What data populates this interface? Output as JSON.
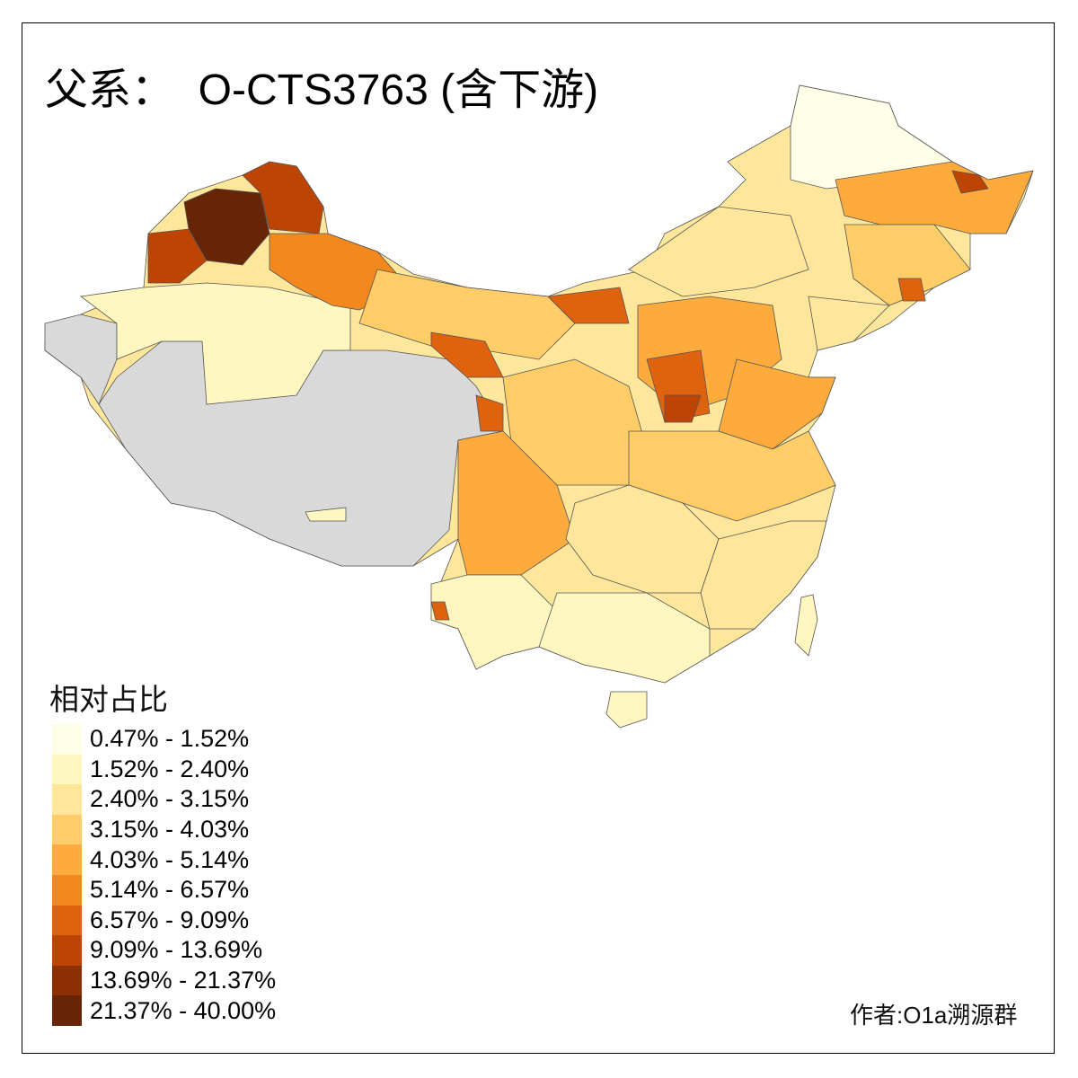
{
  "title": "父系：  O-CTS3763 (含下游)",
  "legend": {
    "title": "相对占比",
    "classes": [
      {
        "label": "0.47% - 1.52%",
        "color": "#FFFEE6"
      },
      {
        "label": "1.52% - 2.40%",
        "color": "#FFF6C0"
      },
      {
        "label": "2.40% - 3.15%",
        "color": "#FEE69A"
      },
      {
        "label": "3.15% - 4.03%",
        "color": "#FECD67"
      },
      {
        "label": "4.03% - 5.14%",
        "color": "#FDAB3C"
      },
      {
        "label": "5.14% - 6.57%",
        "color": "#F3881F"
      },
      {
        "label": "6.57% - 9.09%",
        "color": "#DF620E"
      },
      {
        "label": "9.09% - 13.69%",
        "color": "#BD4403"
      },
      {
        "label": "13.69% - 21.37%",
        "color": "#8D2F04"
      },
      {
        "label": "21.37% - 40.00%",
        "color": "#662506"
      }
    ]
  },
  "no_data_color": "#D9D9D9",
  "credit": "作者:O1a溯源群"
}
